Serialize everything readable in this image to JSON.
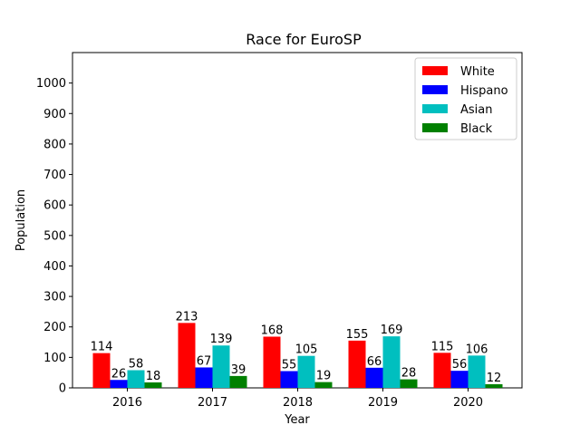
{
  "chart_data": {
    "type": "bar",
    "title": "Race for EuroSP",
    "xlabel": "Year",
    "ylabel": "Population",
    "categories": [
      "2016",
      "2017",
      "2018",
      "2019",
      "2020"
    ],
    "series": [
      {
        "name": "White",
        "color": "#ff0000",
        "values": [
          114,
          213,
          168,
          155,
          115
        ]
      },
      {
        "name": "Hispano",
        "color": "#0000ff",
        "values": [
          26,
          67,
          55,
          66,
          56
        ]
      },
      {
        "name": "Asian",
        "color": "#00bfbf",
        "values": [
          58,
          139,
          105,
          169,
          106
        ]
      },
      {
        "name": "Black",
        "color": "#008000",
        "values": [
          18,
          39,
          19,
          28,
          12
        ]
      }
    ],
    "ylim": [
      0,
      1100
    ],
    "yticks": [
      0,
      100,
      200,
      300,
      400,
      500,
      600,
      700,
      800,
      900,
      1000
    ],
    "grid": false,
    "legend_position": "top-right"
  }
}
